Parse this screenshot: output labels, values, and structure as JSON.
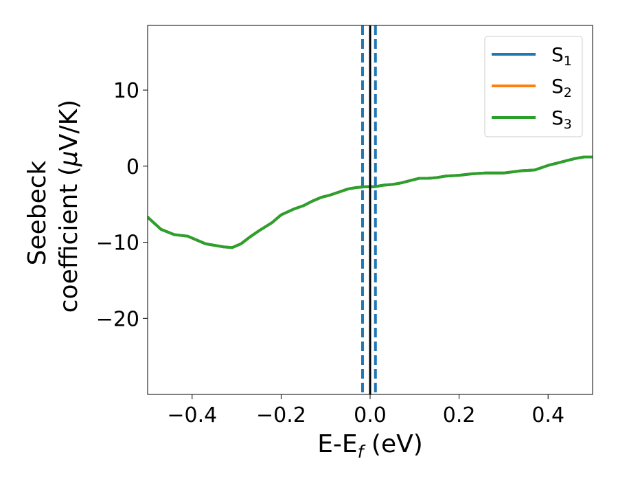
{
  "chart_data": {
    "type": "line",
    "xlabel": {
      "main": "E-E",
      "sub": "f",
      "rest": " (eV)"
    },
    "ylabel": {
      "line1": "Seebeck",
      "line2_pre": "coefficient  (",
      "mu": "μ",
      "line2_post": "V/K)"
    },
    "xlim": [
      -0.5,
      0.5
    ],
    "ylim": [
      -30,
      18.5
    ],
    "xticks": [
      -0.4,
      -0.2,
      0.0,
      0.2,
      0.4
    ],
    "xtick_labels": [
      "−0.4",
      "−0.2",
      "0.0",
      "0.2",
      "0.4"
    ],
    "yticks": [
      -20,
      -10,
      0,
      10
    ],
    "ytick_labels": [
      "−20",
      "−10",
      "0",
      "10"
    ],
    "grid": false,
    "legend_position": "top-right",
    "series": [
      {
        "name": "S",
        "sub": "1",
        "color": "#1f77b4",
        "x": [
          -0.5,
          -0.47,
          -0.44,
          -0.41,
          -0.39,
          -0.37,
          -0.35,
          -0.33,
          -0.31,
          -0.29,
          -0.27,
          -0.25,
          -0.22,
          -0.2,
          -0.17,
          -0.15,
          -0.13,
          -0.11,
          -0.09,
          -0.07,
          -0.05,
          -0.03,
          -0.01,
          0.01,
          0.03,
          0.05,
          0.07,
          0.09,
          0.11,
          0.13,
          0.15,
          0.17,
          0.2,
          0.23,
          0.26,
          0.3,
          0.34,
          0.37,
          0.4,
          0.42,
          0.44,
          0.46,
          0.48,
          0.5
        ],
        "y": [
          -6.7,
          -8.3,
          -9.0,
          -9.2,
          -9.7,
          -10.2,
          -10.4,
          -10.6,
          -10.7,
          -10.2,
          -9.3,
          -8.5,
          -7.4,
          -6.4,
          -5.6,
          -5.2,
          -4.6,
          -4.1,
          -3.8,
          -3.4,
          -3.0,
          -2.8,
          -2.7,
          -2.7,
          -2.5,
          -2.4,
          -2.2,
          -1.9,
          -1.6,
          -1.6,
          -1.5,
          -1.3,
          -1.2,
          -1.0,
          -0.9,
          -0.9,
          -0.6,
          -0.5,
          0.1,
          0.4,
          0.7,
          1.0,
          1.2,
          1.2
        ]
      },
      {
        "name": "S",
        "sub": "2",
        "color": "#ff7f0e",
        "x": [
          -0.5,
          -0.47,
          -0.44,
          -0.41,
          -0.39,
          -0.37,
          -0.35,
          -0.33,
          -0.31,
          -0.29,
          -0.27,
          -0.25,
          -0.22,
          -0.2,
          -0.17,
          -0.15,
          -0.13,
          -0.11,
          -0.09,
          -0.07,
          -0.05,
          -0.03,
          -0.01,
          0.01,
          0.03,
          0.05,
          0.07,
          0.09,
          0.11,
          0.13,
          0.15,
          0.17,
          0.2,
          0.23,
          0.26,
          0.3,
          0.34,
          0.37,
          0.4,
          0.42,
          0.44,
          0.46,
          0.48,
          0.5
        ],
        "y": [
          -6.7,
          -8.3,
          -9.0,
          -9.2,
          -9.7,
          -10.2,
          -10.4,
          -10.6,
          -10.7,
          -10.2,
          -9.3,
          -8.5,
          -7.4,
          -6.4,
          -5.6,
          -5.2,
          -4.6,
          -4.1,
          -3.8,
          -3.4,
          -3.0,
          -2.8,
          -2.7,
          -2.7,
          -2.5,
          -2.4,
          -2.2,
          -1.9,
          -1.6,
          -1.6,
          -1.5,
          -1.3,
          -1.2,
          -1.0,
          -0.9,
          -0.9,
          -0.6,
          -0.5,
          0.1,
          0.4,
          0.7,
          1.0,
          1.2,
          1.2
        ]
      },
      {
        "name": "S",
        "sub": "3",
        "color": "#2ca02c",
        "x": [
          -0.5,
          -0.47,
          -0.44,
          -0.41,
          -0.39,
          -0.37,
          -0.35,
          -0.33,
          -0.31,
          -0.29,
          -0.27,
          -0.25,
          -0.22,
          -0.2,
          -0.17,
          -0.15,
          -0.13,
          -0.11,
          -0.09,
          -0.07,
          -0.05,
          -0.03,
          -0.01,
          0.01,
          0.03,
          0.05,
          0.07,
          0.09,
          0.11,
          0.13,
          0.15,
          0.17,
          0.2,
          0.23,
          0.26,
          0.3,
          0.34,
          0.37,
          0.4,
          0.42,
          0.44,
          0.46,
          0.48,
          0.5
        ],
        "y": [
          -6.7,
          -8.3,
          -9.0,
          -9.2,
          -9.7,
          -10.2,
          -10.4,
          -10.6,
          -10.7,
          -10.2,
          -9.3,
          -8.5,
          -7.4,
          -6.4,
          -5.6,
          -5.2,
          -4.6,
          -4.1,
          -3.8,
          -3.4,
          -3.0,
          -2.8,
          -2.7,
          -2.7,
          -2.5,
          -2.4,
          -2.2,
          -1.9,
          -1.6,
          -1.6,
          -1.5,
          -1.3,
          -1.2,
          -1.0,
          -0.9,
          -0.9,
          -0.6,
          -0.5,
          0.1,
          0.4,
          0.7,
          1.0,
          1.2,
          1.2
        ]
      }
    ],
    "vlines": [
      {
        "x": 0.0,
        "style": "solid",
        "color": "#000000"
      },
      {
        "x": -0.017,
        "style": "dashed",
        "color": "#1f77b4"
      },
      {
        "x": 0.012,
        "style": "dashed",
        "color": "#1f77b4"
      }
    ]
  }
}
